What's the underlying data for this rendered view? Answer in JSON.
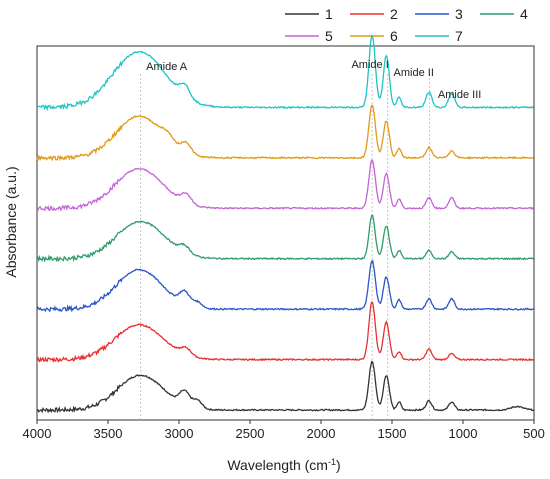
{
  "chart_data": {
    "type": "line",
    "title": "",
    "xlabel": "Wavelength (cm",
    "xlabel_sup": "-1",
    "xlabel_close": ")",
    "ylabel": "Absorbance (a.u.)",
    "xlim": [
      4000,
      500
    ],
    "x_reversed": true,
    "x_ticks": [
      "4000",
      "3500",
      "3000",
      "2500",
      "2000",
      "1500",
      "1000",
      "500"
    ],
    "y_ticks_shown": false,
    "grid": false,
    "legend_position": "top-right",
    "legend_columns": 4,
    "stacked_offsets": true,
    "annotations": [
      {
        "text": "Amide A",
        "x": 3270
      },
      {
        "text": "Amide I",
        "x": 1640
      },
      {
        "text": "Amide II",
        "x": 1530
      },
      {
        "text": "Amide III",
        "x": 1235
      }
    ],
    "series": [
      {
        "name": "1",
        "color": "#333333",
        "offset": 0.0,
        "peaks": [
          {
            "x": 3270,
            "h": 0.3,
            "w": 230
          },
          {
            "x": 2960,
            "h": 0.12,
            "w": 50
          },
          {
            "x": 2870,
            "h": 0.07,
            "w": 45
          },
          {
            "x": 1640,
            "h": 0.42,
            "w": 32
          },
          {
            "x": 1540,
            "h": 0.3,
            "w": 30
          },
          {
            "x": 1450,
            "h": 0.07,
            "w": 20
          },
          {
            "x": 1240,
            "h": 0.08,
            "w": 28
          },
          {
            "x": 1080,
            "h": 0.07,
            "w": 28
          },
          {
            "x": 620,
            "h": 0.03,
            "w": 60
          }
        ]
      },
      {
        "name": "2",
        "color": "#e83030",
        "offset": 1.0,
        "peaks": [
          {
            "x": 3280,
            "h": 0.3,
            "w": 240
          },
          {
            "x": 2950,
            "h": 0.06,
            "w": 50
          },
          {
            "x": 1640,
            "h": 0.5,
            "w": 32
          },
          {
            "x": 1540,
            "h": 0.32,
            "w": 30
          },
          {
            "x": 1450,
            "h": 0.07,
            "w": 22
          },
          {
            "x": 1240,
            "h": 0.09,
            "w": 28
          },
          {
            "x": 1080,
            "h": 0.05,
            "w": 30
          }
        ]
      },
      {
        "name": "3",
        "color": "#2a56c8",
        "offset": 2.0,
        "peaks": [
          {
            "x": 3280,
            "h": 0.34,
            "w": 230
          },
          {
            "x": 2960,
            "h": 0.11,
            "w": 50
          },
          {
            "x": 2870,
            "h": 0.05,
            "w": 45
          },
          {
            "x": 1640,
            "h": 0.42,
            "w": 32
          },
          {
            "x": 1540,
            "h": 0.28,
            "w": 30
          },
          {
            "x": 1450,
            "h": 0.08,
            "w": 22
          },
          {
            "x": 1240,
            "h": 0.09,
            "w": 28
          },
          {
            "x": 1080,
            "h": 0.09,
            "w": 28
          }
        ]
      },
      {
        "name": "4",
        "color": "#2e9d6a",
        "offset": 3.0,
        "peaks": [
          {
            "x": 3270,
            "h": 0.32,
            "w": 240
          },
          {
            "x": 2960,
            "h": 0.06,
            "w": 50
          },
          {
            "x": 1640,
            "h": 0.38,
            "w": 30
          },
          {
            "x": 1540,
            "h": 0.28,
            "w": 30
          },
          {
            "x": 1450,
            "h": 0.07,
            "w": 22
          },
          {
            "x": 1240,
            "h": 0.07,
            "w": 28
          },
          {
            "x": 1080,
            "h": 0.06,
            "w": 28
          }
        ]
      },
      {
        "name": "5",
        "color": "#c464d8",
        "offset": 4.0,
        "peaks": [
          {
            "x": 3280,
            "h": 0.34,
            "w": 240
          },
          {
            "x": 2950,
            "h": 0.08,
            "w": 50
          },
          {
            "x": 1640,
            "h": 0.42,
            "w": 32
          },
          {
            "x": 1540,
            "h": 0.3,
            "w": 30
          },
          {
            "x": 1450,
            "h": 0.08,
            "w": 22
          },
          {
            "x": 1240,
            "h": 0.09,
            "w": 28
          },
          {
            "x": 1080,
            "h": 0.09,
            "w": 28
          }
        ]
      },
      {
        "name": "6",
        "color": "#e09a1a",
        "offset": 5.0,
        "peaks": [
          {
            "x": 3280,
            "h": 0.36,
            "w": 230
          },
          {
            "x": 3080,
            "h": 0.06,
            "w": 60
          },
          {
            "x": 2950,
            "h": 0.09,
            "w": 50
          },
          {
            "x": 1640,
            "h": 0.46,
            "w": 32
          },
          {
            "x": 1540,
            "h": 0.32,
            "w": 30
          },
          {
            "x": 1450,
            "h": 0.08,
            "w": 22
          },
          {
            "x": 1240,
            "h": 0.09,
            "w": 28
          },
          {
            "x": 1080,
            "h": 0.06,
            "w": 30
          }
        ]
      },
      {
        "name": "7",
        "color": "#1fc4c4",
        "offset": 6.0,
        "peaks": [
          {
            "x": 3280,
            "h": 0.48,
            "w": 260
          },
          {
            "x": 2960,
            "h": 0.1,
            "w": 50
          },
          {
            "x": 1640,
            "h": 0.62,
            "w": 32
          },
          {
            "x": 1540,
            "h": 0.45,
            "w": 30
          },
          {
            "x": 1450,
            "h": 0.09,
            "w": 22
          },
          {
            "x": 1240,
            "h": 0.13,
            "w": 30
          },
          {
            "x": 1080,
            "h": 0.12,
            "w": 30
          }
        ]
      }
    ]
  }
}
